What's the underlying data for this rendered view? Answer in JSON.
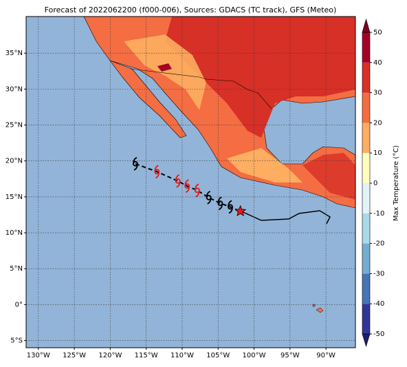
{
  "title": "Forecast of 2022062200 (f000-006), Sources: GDACS (TC track), GFS (Meteo)",
  "map": {
    "lon_range": [
      -131.7,
      -85.9
    ],
    "lat_range": [
      -6.0,
      40.1
    ],
    "grid": true,
    "lat_ticks": [
      {
        "value": -5,
        "label": "5°S"
      },
      {
        "value": 0,
        "label": "0°"
      },
      {
        "value": 5,
        "label": "5°N"
      },
      {
        "value": 10,
        "label": "10°N"
      },
      {
        "value": 15,
        "label": "15°N"
      },
      {
        "value": 20,
        "label": "20°N"
      },
      {
        "value": 25,
        "label": "25°N"
      },
      {
        "value": 30,
        "label": "30°N"
      },
      {
        "value": 35,
        "label": "35°N"
      }
    ],
    "lon_ticks": [
      {
        "value": -130,
        "label": "130°W"
      },
      {
        "value": -125,
        "label": "125°W"
      },
      {
        "value": -120,
        "label": "120°W"
      },
      {
        "value": -115,
        "label": "115°W"
      },
      {
        "value": -110,
        "label": "110°W"
      },
      {
        "value": -105,
        "label": "105°W"
      },
      {
        "value": -100,
        "label": "100°W"
      },
      {
        "value": -95,
        "label": "95°W"
      },
      {
        "value": -90,
        "label": "90°W"
      }
    ],
    "track": {
      "lon": [
        -116.5,
        -113.5,
        -110.6,
        -109.3,
        -107.9,
        -106.3,
        -104.7,
        -103.3,
        -101.9
      ],
      "lat": [
        19.6,
        18.5,
        17.2,
        16.5,
        15.9,
        14.9,
        14.1,
        13.6,
        13.0
      ],
      "colors": [
        "#000000",
        "#e41a1c",
        "#e41a1c",
        "#e41a1c",
        "#e41a1c",
        "#000000",
        "#000000",
        "#000000",
        "#e41a1c"
      ],
      "markers": [
        "cyclone",
        "cyclone",
        "cyclone",
        "cyclone",
        "cyclone",
        "cyclone",
        "cyclone",
        "cyclone",
        "star"
      ]
    }
  },
  "colorbar": {
    "label": "Max Temperature (°C)",
    "lim": [
      -50,
      50
    ],
    "ticks": [
      -50,
      -40,
      -30,
      -20,
      -10,
      0,
      10,
      20,
      30,
      40,
      50
    ],
    "colors": [
      "#313695",
      "#4575b4",
      "#74add1",
      "#abd9e9",
      "#e0f3f8",
      "#ffffbf",
      "#fdae61",
      "#f46d43",
      "#d73027",
      "#a50026"
    ],
    "under": "#1a1f6b",
    "over": "#7f0022"
  }
}
